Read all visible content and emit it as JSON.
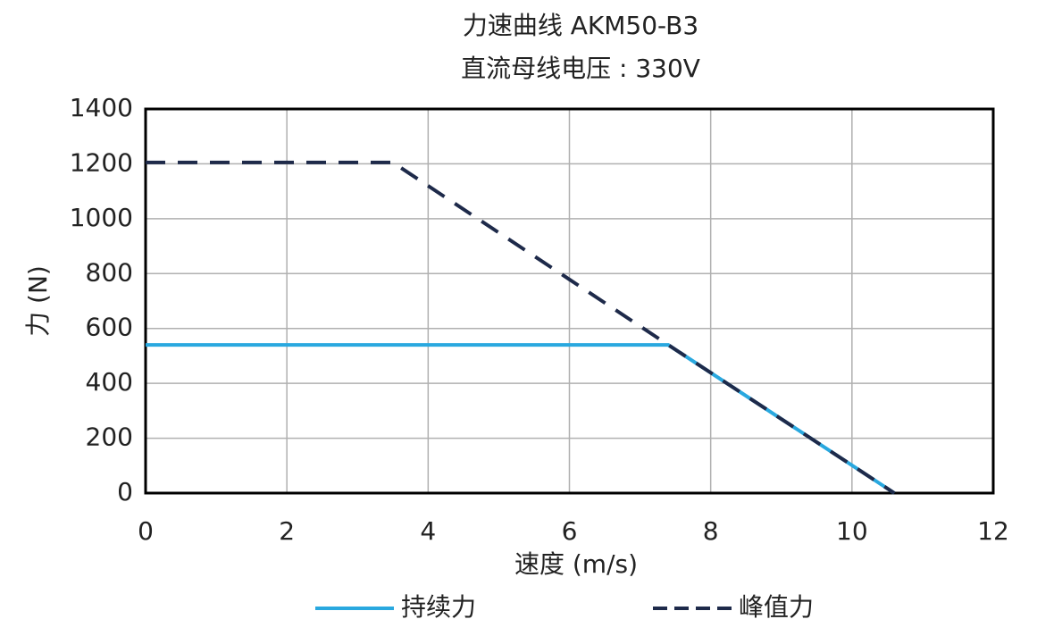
{
  "chart_data": {
    "type": "line",
    "title": "力速曲线 AKM50-B3",
    "subtitle": "直流母线电压 : 330V",
    "x_label": "速度 (m/s)",
    "y_label": "力 (N)",
    "xlim": [
      0,
      12
    ],
    "xticks": [
      0,
      2,
      4,
      6,
      8,
      10,
      12
    ],
    "ylim": [
      0,
      1400
    ],
    "yticks": [
      0,
      200,
      400,
      600,
      800,
      1000,
      1200,
      1400
    ],
    "grid": true,
    "series": [
      {
        "name": "持续力",
        "color": "#29a8df",
        "dash": false,
        "x": [
          0,
          7.4,
          10.6
        ],
        "values": [
          540,
          540,
          0
        ]
      },
      {
        "name": "峰值力",
        "color": "#1e2a4a",
        "dash": true,
        "x": [
          0,
          3.5,
          7.4,
          10.6
        ],
        "values": [
          1205,
          1205,
          540,
          0
        ]
      }
    ]
  }
}
